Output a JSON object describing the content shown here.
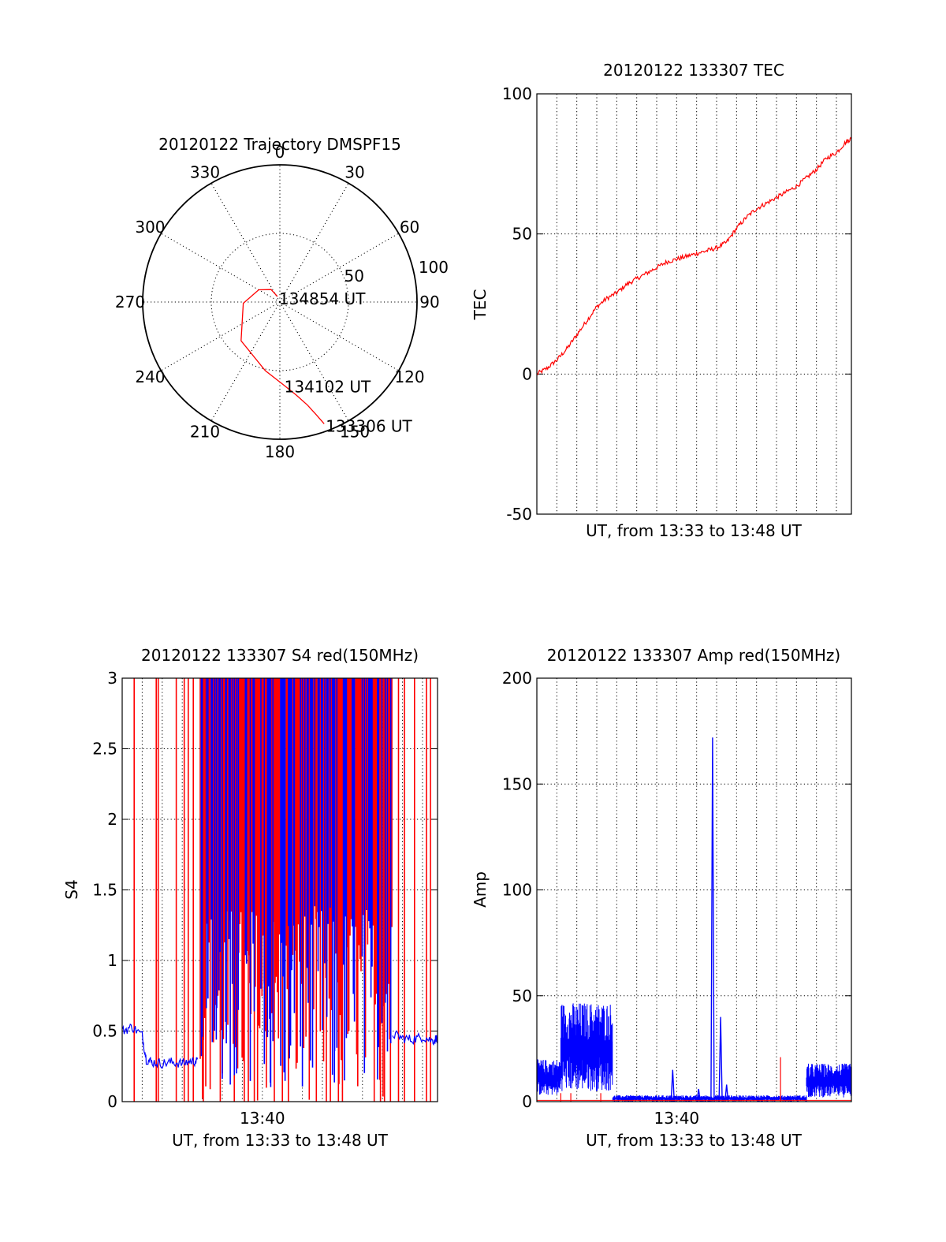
{
  "chart_data": [
    {
      "type": "polar",
      "title": "20120122 Trajectory DMSPF15",
      "angle_labels": [
        "0",
        "30",
        "60",
        "90",
        "120",
        "150",
        "180",
        "210",
        "240",
        "270",
        "300",
        "330"
      ],
      "radius_labels": [
        "50",
        "100"
      ],
      "trajectory": {
        "color": "#ff0000",
        "points": [
          {
            "az": 160,
            "el": 5
          },
          {
            "az": 162,
            "el": 12
          },
          {
            "az": 165,
            "el": 20
          },
          {
            "az": 170,
            "el": 28
          },
          {
            "az": 178,
            "el": 36
          },
          {
            "az": 192,
            "el": 44
          },
          {
            "az": 225,
            "el": 54
          },
          {
            "az": 268,
            "el": 66
          },
          {
            "az": 300,
            "el": 74
          },
          {
            "az": 325,
            "el": 80
          },
          {
            "az": 336,
            "el": 86
          }
        ]
      },
      "annotations": [
        {
          "text": "134854 UT",
          "az": 336,
          "el": 86
        },
        {
          "text": "134102 UT",
          "az": 178,
          "el": 36
        },
        {
          "text": "133306 UT",
          "az": 160,
          "el": 5
        }
      ]
    },
    {
      "type": "line",
      "title": "20120122 133307 TEC",
      "xlabel": "UT, from 13:33 to 13:48 UT",
      "ylabel": "TEC",
      "ylim": [
        -50,
        100
      ],
      "yticks": [
        "-50",
        "0",
        "50",
        "100"
      ],
      "xlim": [
        0,
        15.75
      ],
      "xgrid_step_min": 1,
      "grid": true,
      "series": [
        {
          "color": "#ff0000",
          "x": [
            0,
            0.5,
            1,
            1.5,
            2,
            2.5,
            3,
            3.5,
            4,
            4.5,
            5,
            5.5,
            6,
            6.5,
            7,
            7.5,
            8,
            8.5,
            9,
            9.5,
            10,
            10.5,
            11,
            11.5,
            12,
            12.5,
            13,
            13.5,
            14,
            14.5,
            15,
            15.5,
            15.75
          ],
          "y": [
            0,
            2,
            5,
            9,
            14,
            19,
            24,
            27,
            29,
            32,
            34,
            36,
            38,
            40,
            41,
            42,
            43,
            44,
            45,
            47,
            52,
            56,
            59,
            61,
            63,
            65,
            67,
            70,
            73,
            77,
            79,
            83,
            84
          ]
        }
      ]
    },
    {
      "type": "line",
      "title": "20120122 133307 S4 red(150MHz)",
      "xlabel": "UT, from 13:33 to 13:48 UT",
      "ylabel": "S4",
      "ylim": [
        0,
        3
      ],
      "yticks": [
        "0",
        "0.5",
        "1",
        "1.5",
        "2",
        "2.5",
        "3"
      ],
      "xlim": [
        0,
        15.75
      ],
      "xtick_label": "13:40",
      "xtick_pos": 7,
      "grid": true,
      "series": [
        {
          "color": "#0000ff",
          "x": [
            0,
            0.5,
            1,
            1.2,
            1.5,
            2,
            2.5,
            3,
            3.5,
            3.8
          ],
          "y": [
            0.5,
            0.53,
            0.47,
            0.3,
            0.28,
            0.27,
            0.28,
            0.27,
            0.29,
            0.28
          ]
        },
        {
          "color": "#0000ff",
          "x": [
            13.5,
            14,
            14.5,
            15,
            15.5,
            15.75
          ],
          "y": [
            0.48,
            0.45,
            0.44,
            0.46,
            0.43,
            0.45
          ]
        }
      ],
      "spikes_red_x": [
        0.6,
        1.7,
        1.8,
        2.7,
        3.1,
        3.3,
        3.55,
        4.05,
        4.9,
        5.6,
        6.1,
        6.3,
        6.6,
        7.6,
        8.0,
        8.3,
        9.7,
        10.2,
        10.4,
        10.8,
        11.0,
        12.9,
        13.1,
        13.4,
        13.8,
        14.1,
        14.6,
        15.2,
        15.4
      ],
      "spikes_blue_x": [
        4.0,
        4.2,
        4.5,
        4.7,
        5.0,
        5.2,
        5.4,
        5.8,
        6.4,
        7.1,
        7.4,
        8.6,
        9.0,
        9.4,
        10.0,
        10.6,
        11.2,
        11.6,
        12.1
      ],
      "spike_range": [
        3.9,
        13.5
      ]
    },
    {
      "type": "line",
      "title": "20120122 133307 Amp red(150MHz)",
      "xlabel": "UT, from 13:33 to 13:48 UT",
      "ylabel": "Amp",
      "ylim": [
        0,
        200
      ],
      "yticks": [
        "0",
        "50",
        "100",
        "150",
        "200"
      ],
      "xlim": [
        0,
        15.75
      ],
      "xtick_label": "13:40",
      "xtick_pos": 7,
      "grid": true,
      "series": [
        {
          "color": "#0000ff",
          "segments": [
            {
              "x0": 0,
              "x1": 1.2,
              "lo": 3,
              "hi": 20
            },
            {
              "x0": 1.2,
              "x1": 3.8,
              "lo": 5,
              "hi": 47
            },
            {
              "x0": 3.8,
              "x1": 13.5,
              "lo": 0,
              "hi": 3
            },
            {
              "x0": 13.5,
              "x1": 15.75,
              "lo": 2,
              "hi": 18
            }
          ],
          "peaks": [
            {
              "x": 6.8,
              "y": 15
            },
            {
              "x": 8.1,
              "y": 6
            },
            {
              "x": 8.8,
              "y": 172
            },
            {
              "x": 9.2,
              "y": 40
            },
            {
              "x": 9.5,
              "y": 8
            }
          ]
        },
        {
          "color": "#ff0000",
          "peaks": [
            {
              "x": 1.2,
              "y": 4
            },
            {
              "x": 1.7,
              "y": 4
            },
            {
              "x": 3.2,
              "y": 4
            },
            {
              "x": 12.2,
              "y": 21
            }
          ]
        }
      ]
    }
  ]
}
